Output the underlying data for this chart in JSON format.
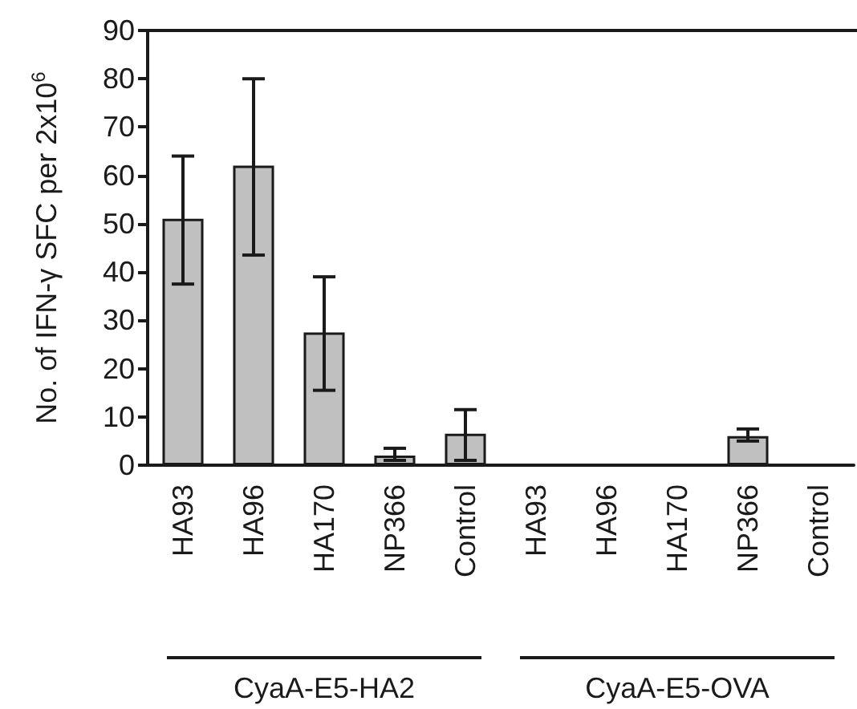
{
  "chart_data": {
    "type": "bar",
    "categories": [
      "HA93",
      "HA96",
      "HA170",
      "NP366",
      "Control",
      "HA93",
      "HA96",
      "HA170",
      "NP366",
      "Control"
    ],
    "values": [
      51,
      62,
      27.5,
      2,
      6.5,
      0,
      0,
      0,
      6,
      0
    ],
    "errors": [
      [
        37.5,
        64
      ],
      [
        43.5,
        80
      ],
      [
        15.5,
        39
      ],
      [
        1,
        3.5
      ],
      [
        1,
        11.5
      ],
      null,
      null,
      null,
      [
        5,
        7.5
      ],
      null
    ],
    "color": "#c0c0c0",
    "ylabel": "No. of IFN-γ SFC per 2x10$^{6}$",
    "ylim": [
      0,
      90
    ],
    "yticks": [
      0,
      10,
      20,
      30,
      40,
      50,
      60,
      70,
      80,
      90
    ],
    "annotations": [
      "CyaA-E5-HA2",
      "CyaA-E5-OVA"
    ],
    "grid": false
  }
}
